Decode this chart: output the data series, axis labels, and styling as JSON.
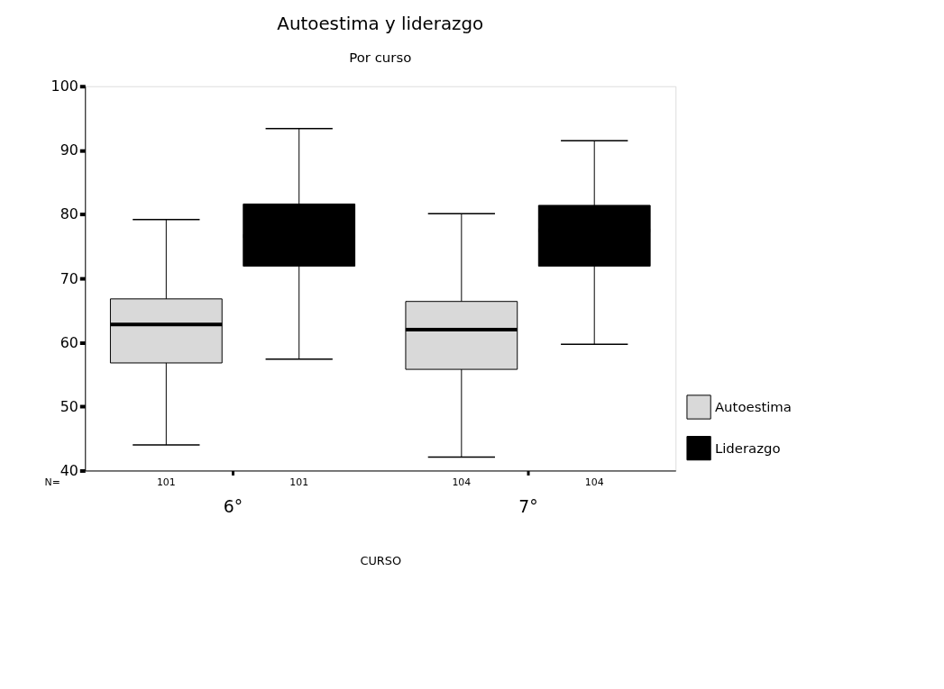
{
  "chart_data": {
    "type": "box",
    "title": "Autoestima y liderazgo",
    "subtitle": "Por curso",
    "xlabel": "CURSO",
    "categories": [
      "6°",
      "7°"
    ],
    "series": [
      {
        "name": "Autoestima",
        "color": "#d9d9d9",
        "boxes": [
          {
            "low": 44,
            "q1": 56.8,
            "median": 62.8,
            "q3": 66.8,
            "high": 79.2
          },
          {
            "low": 42.1,
            "q1": 55.8,
            "median": 62.0,
            "q3": 66.4,
            "high": 80.1
          }
        ]
      },
      {
        "name": "Liderazgo",
        "color": "#000000",
        "boxes": [
          {
            "low": 57.4,
            "q1": 71.9,
            "median": 76.6,
            "q3": 81.6,
            "high": 93.4
          },
          {
            "low": 59.7,
            "q1": 71.9,
            "median": 77.5,
            "q3": 81.4,
            "high": 91.5
          }
        ]
      }
    ],
    "ylim": [
      40,
      100
    ],
    "yticks": [
      40,
      50,
      60,
      70,
      80,
      90,
      100
    ],
    "grid": false,
    "legend": "bottom right",
    "annotations": [
      "N=",
      "101",
      "101",
      "104",
      "104"
    ]
  }
}
